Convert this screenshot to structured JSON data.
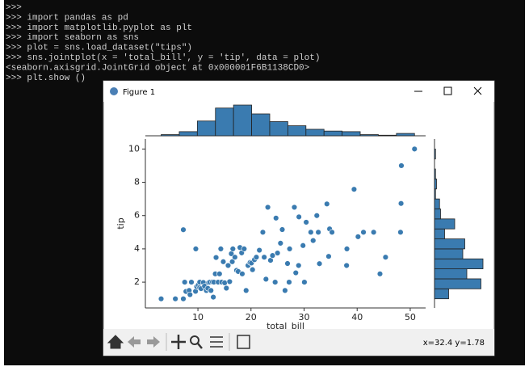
{
  "terminal": {
    "lines": [
      ">>>",
      ">>> import pandas as pd",
      ">>> import matplotlib.pyplot as plt",
      ">>> import seaborn as sns",
      ">>> plot = sns.load_dataset(\"tips\")",
      ">>> sns.jointplot(x = 'total_bill', y = 'tip', data = plot)",
      "<seaborn.axisgrid.JointGrid object at 0x000001F6B1138CD0>",
      ">>> plt.show ()"
    ]
  },
  "window": {
    "title": "Figure 1",
    "status": "x=32.4 y=1.78"
  },
  "chart_data": {
    "type": "scatter",
    "x_label": "total_bill",
    "y_label": "tip",
    "color": "#3a7bb0",
    "x": [
      3.07,
      5.75,
      7.25,
      7.25,
      7.51,
      7.74,
      8.35,
      8.51,
      8.77,
      9.55,
      9.6,
      9.78,
      10.07,
      10.33,
      10.34,
      10.59,
      11.02,
      11.24,
      11.59,
      11.87,
      12.02,
      12.26,
      12.46,
      12.74,
      12.9,
      13.0,
      13.27,
      13.42,
      13.81,
      14.07,
      14.31,
      14.48,
      14.78,
      15.04,
      15.36,
      15.69,
      15.98,
      16.29,
      16.47,
      16.58,
      16.97,
      17.29,
      17.59,
      17.92,
      18.24,
      18.35,
      18.71,
      19.08,
      19.44,
      19.82,
      20.08,
      20.29,
      20.65,
      21.01,
      21.58,
      22.23,
      22.49,
      22.82,
      23.17,
      23.68,
      24.06,
      24.55,
      24.71,
      25.0,
      25.56,
      25.89,
      26.41,
      26.88,
      27.18,
      27.28,
      28.17,
      28.44,
      28.97,
      29.03,
      29.8,
      30.06,
      30.4,
      31.27,
      31.71,
      32.4,
      32.68,
      32.9,
      34.3,
      34.63,
      34.81,
      35.26,
      38.01,
      38.07,
      39.42,
      40.17,
      41.19,
      43.11,
      44.3,
      45.35,
      48.17,
      48.27,
      48.33,
      50.81
    ],
    "values": [
      1,
      1,
      1,
      5.15,
      2,
      1.44,
      1.5,
      1.25,
      2,
      1.45,
      4,
      1.73,
      1.83,
      1.67,
      2,
      1.61,
      1.98,
      1.76,
      1.5,
      1.63,
      1.97,
      2,
      1.5,
      2.01,
      1.1,
      2,
      2.5,
      3.48,
      2,
      2.5,
      4,
      2,
      3.23,
      1.96,
      1.64,
      3,
      2.03,
      3.71,
      3.23,
      4,
      3.5,
      2.71,
      2.64,
      4.08,
      3.76,
      2.5,
      4,
      1.5,
      3,
      3.18,
      3.15,
      2.75,
      3.35,
      3.5,
      3.92,
      5,
      3.5,
      2.18,
      6.5,
      3.31,
      3.6,
      2,
      5.85,
      3.75,
      4.34,
      5.16,
      1.5,
      3.12,
      2,
      4,
      6.5,
      2.56,
      3,
      5.92,
      4.2,
      2,
      5.6,
      5,
      4.5,
      6,
      5,
      3.11,
      6.7,
      3.55,
      5.2,
      5,
      3,
      4,
      7.58,
      4.73,
      5,
      5,
      2.5,
      3.5,
      5,
      6.73,
      9,
      10
    ],
    "xlim": [
      0.1,
      52.9
    ],
    "ylim": [
      0.45,
      10.6
    ],
    "xticks": [
      10,
      20,
      30,
      40,
      50
    ],
    "yticks": [
      2,
      4,
      6,
      8,
      10
    ],
    "marginal_x": {
      "bins": [
        3.07,
        6.48,
        9.89,
        13.3,
        16.71,
        20.12,
        23.53,
        26.94,
        30.35,
        33.76,
        37.17,
        40.58,
        43.99,
        47.4,
        50.81
      ],
      "values": [
        2,
        7,
        25,
        47,
        52,
        37,
        24,
        17,
        11,
        8,
        7,
        2,
        1,
        4
      ]
    },
    "marginal_y": {
      "bins": [
        1.0,
        1.6,
        2.2,
        2.8,
        3.4,
        4.0,
        4.6,
        5.2,
        5.8,
        6.4,
        7.0,
        7.6,
        8.2,
        8.8,
        9.4,
        10.0
      ],
      "values": [
        14,
        46,
        32,
        48,
        28,
        30,
        10,
        20,
        6,
        5,
        1,
        2,
        1,
        0,
        1
      ]
    }
  }
}
